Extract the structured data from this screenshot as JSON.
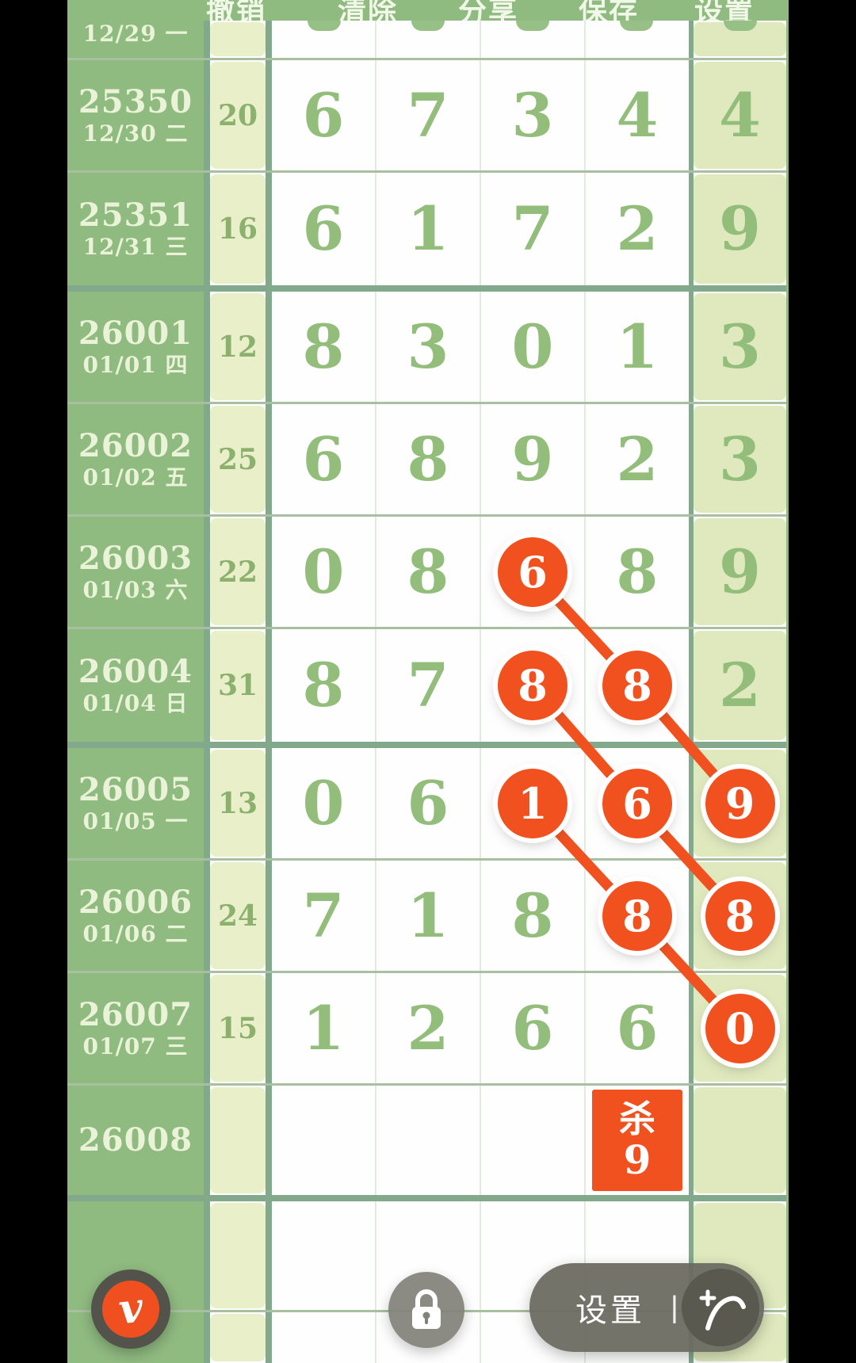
{
  "toolbar": {
    "buttons": [
      {
        "name": "undo",
        "label": "撤销"
      },
      {
        "name": "clear",
        "label": "清除"
      },
      {
        "name": "share",
        "label": "分享"
      },
      {
        "name": "save",
        "label": "保存"
      },
      {
        "name": "settings",
        "label": "设置"
      }
    ]
  },
  "grid": {
    "partial_top_row": {
      "date": "12/29 一"
    },
    "rows": [
      {
        "issue": "25350",
        "date": "12/30 二",
        "sum": "20",
        "cells": [
          {
            "v": "6"
          },
          {
            "v": "7"
          },
          {
            "v": "3"
          },
          {
            "v": "4"
          },
          {
            "v": "4"
          }
        ]
      },
      {
        "issue": "25351",
        "date": "12/31 三",
        "sum": "16",
        "sep_after": true,
        "cells": [
          {
            "v": "6"
          },
          {
            "v": "1"
          },
          {
            "v": "7"
          },
          {
            "v": "2"
          },
          {
            "v": "9"
          }
        ]
      },
      {
        "issue": "26001",
        "date": "01/01 四",
        "sum": "12",
        "cells": [
          {
            "v": "8"
          },
          {
            "v": "3"
          },
          {
            "v": "0"
          },
          {
            "v": "1"
          },
          {
            "v": "3"
          }
        ]
      },
      {
        "issue": "26002",
        "date": "01/02 五",
        "sum": "25",
        "cells": [
          {
            "v": "6"
          },
          {
            "v": "8"
          },
          {
            "v": "9"
          },
          {
            "v": "2"
          },
          {
            "v": "3"
          }
        ]
      },
      {
        "issue": "26003",
        "date": "01/03 六",
        "sum": "22",
        "cells": [
          {
            "v": "0"
          },
          {
            "v": "8"
          },
          {
            "v": "6",
            "circled": true
          },
          {
            "v": "8"
          },
          {
            "v": "9"
          }
        ]
      },
      {
        "issue": "26004",
        "date": "01/04 日",
        "sum": "31",
        "sep_after": true,
        "cells": [
          {
            "v": "8"
          },
          {
            "v": "7"
          },
          {
            "v": "8",
            "circled": true
          },
          {
            "v": "8",
            "circled": true
          },
          {
            "v": "2"
          }
        ]
      },
      {
        "issue": "26005",
        "date": "01/05 一",
        "sum": "13",
        "cells": [
          {
            "v": "0"
          },
          {
            "v": "6"
          },
          {
            "v": "1",
            "circled": true
          },
          {
            "v": "6",
            "circled": true
          },
          {
            "v": "9",
            "circled": true
          }
        ]
      },
      {
        "issue": "26006",
        "date": "01/06 二",
        "sum": "24",
        "cells": [
          {
            "v": "7"
          },
          {
            "v": "1"
          },
          {
            "v": "8"
          },
          {
            "v": "8",
            "circled": true
          },
          {
            "v": "8",
            "circled": true
          }
        ]
      },
      {
        "issue": "26007",
        "date": "01/07 三",
        "sum": "15",
        "cells": [
          {
            "v": "1"
          },
          {
            "v": "2"
          },
          {
            "v": "6"
          },
          {
            "v": "6"
          },
          {
            "v": "0",
            "circled": true
          }
        ]
      },
      {
        "issue": "26008",
        "date": "",
        "sum": "",
        "sep_after": true,
        "cells": [
          {},
          {},
          {},
          {
            "kill": true
          },
          {}
        ]
      }
    ],
    "kill": {
      "label": "杀",
      "value": "9"
    },
    "trend_lines": [
      {
        "from": [
          4,
          2
        ],
        "to": [
          5,
          3
        ]
      },
      {
        "from": [
          5,
          2
        ],
        "to": [
          6,
          3
        ]
      },
      {
        "from": [
          5,
          3
        ],
        "to": [
          6,
          4
        ]
      },
      {
        "from": [
          6,
          2
        ],
        "to": [
          7,
          3
        ]
      },
      {
        "from": [
          6,
          3
        ],
        "to": [
          7,
          4
        ]
      },
      {
        "from": [
          7,
          3
        ],
        "to": [
          8,
          4
        ]
      }
    ]
  },
  "footer": {
    "settings_label": "设置",
    "divider": "|",
    "logo_letter": "v"
  },
  "colors": {
    "accent": "#f1511f",
    "toolbar_green": "#8fba80",
    "sum_cell": "#e9efc8",
    "last_cell": "#dfe9bd",
    "digit_green": "#93bd7a",
    "separator_teal": "#83a98d",
    "row_line": "#a9bfa2",
    "fab_gray": "#6a6a61",
    "black_bar": "#000000"
  }
}
